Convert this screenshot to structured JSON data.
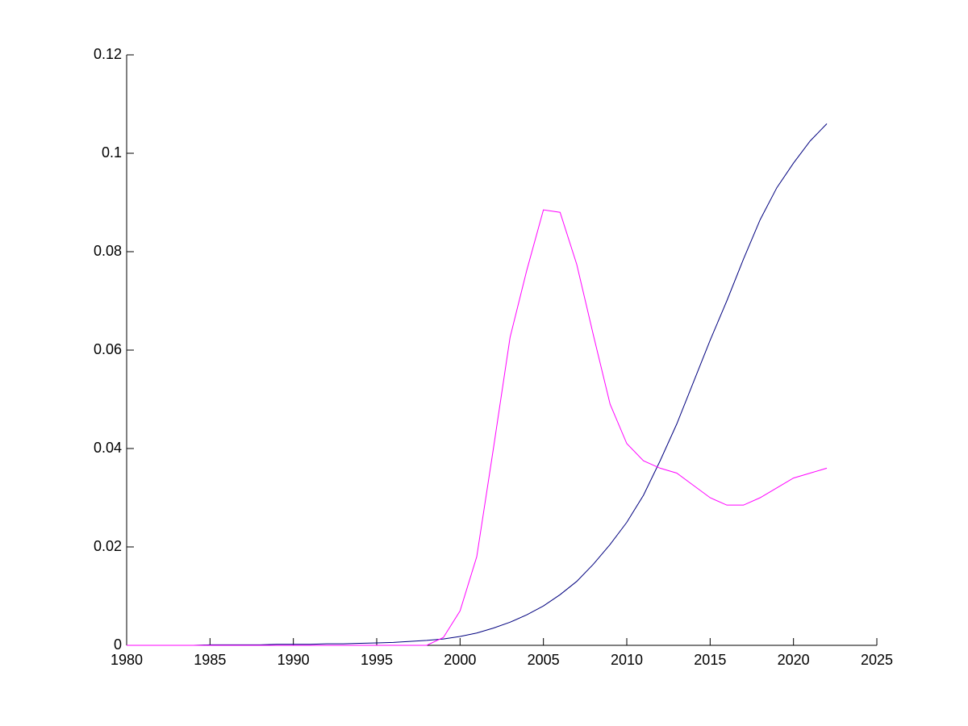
{
  "chart_data": {
    "type": "line",
    "x": [
      1980,
      1981,
      1982,
      1983,
      1984,
      1985,
      1986,
      1987,
      1988,
      1989,
      1990,
      1991,
      1992,
      1993,
      1994,
      1995,
      1996,
      1997,
      1998,
      1999,
      2000,
      2001,
      2002,
      2003,
      2004,
      2005,
      2006,
      2007,
      2008,
      2009,
      2010,
      2011,
      2012,
      2013,
      2014,
      2015,
      2016,
      2017,
      2018,
      2019,
      2020,
      2021,
      2022
    ],
    "series": [
      {
        "color": "#00007f",
        "values": [
          0,
          0,
          0,
          0,
          0,
          0.0001,
          0.0001,
          0.0001,
          0.0001,
          0.0002,
          0.0002,
          0.0002,
          0.0003,
          0.0003,
          0.0004,
          0.0005,
          0.0006,
          0.0008,
          0.001,
          0.0013,
          0.0018,
          0.0025,
          0.0035,
          0.0047,
          0.0062,
          0.008,
          0.0103,
          0.013,
          0.0165,
          0.0205,
          0.025,
          0.0305,
          0.0375,
          0.045,
          0.0535,
          0.062,
          0.07,
          0.0785,
          0.0865,
          0.093,
          0.098,
          0.1025,
          0.106
        ]
      },
      {
        "color": "#ff00ff",
        "values": [
          0,
          0,
          0,
          0,
          0,
          0,
          0,
          0,
          0,
          0,
          0,
          0,
          0,
          0,
          0,
          0,
          0,
          0,
          0,
          0.0016,
          0.007,
          0.018,
          0.04,
          0.0626,
          0.0762,
          0.0885,
          0.088,
          0.0774,
          0.063,
          0.049,
          0.041,
          0.0375,
          0.036,
          0.035,
          0.0325,
          0.03,
          0.0285,
          0.0285,
          0.03,
          0.032,
          0.034,
          0.035,
          0.036
        ]
      }
    ],
    "xlim": [
      1980,
      2025
    ],
    "xticks": [
      1980,
      1985,
      1990,
      1995,
      2000,
      2005,
      2010,
      2015,
      2020,
      2025
    ],
    "ylim": [
      0,
      0.12
    ],
    "yticks": [
      0,
      0.02,
      0.04,
      0.06,
      0.08,
      0.1,
      0.12
    ]
  }
}
